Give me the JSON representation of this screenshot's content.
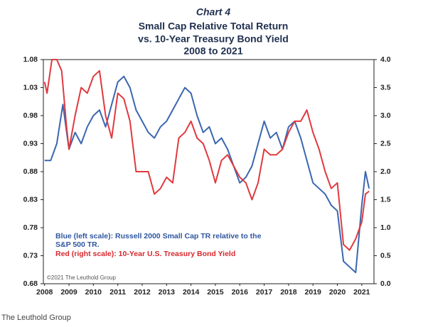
{
  "chart_data": {
    "type": "line",
    "title": "Chart 4",
    "subtitle": [
      "Small Cap Relative Total Return",
      "vs. 10-Year Treasury Bond Yield",
      "2008 to 2021"
    ],
    "annotations": [
      "Blue (left scale):  Russell 2000 Small Cap TR relative to the",
      "S&P 500 TR.",
      "Red (right scale): 10-Year U.S. Treasury Bond Yield",
      "©2021 The Leuthold Group"
    ],
    "source": "The Leuthold Group",
    "xlim": [
      2007.95,
      2021.5
    ],
    "xticks": [
      2008,
      2009,
      2010,
      2011,
      2012,
      2013,
      2014,
      2015,
      2016,
      2017,
      2018,
      2019,
      2020,
      2021
    ],
    "ylim": [
      0.68,
      1.08
    ],
    "yticks": [
      0.68,
      0.73,
      0.78,
      0.83,
      0.88,
      0.93,
      0.98,
      1.03,
      1.08
    ],
    "y2lim": [
      0,
      4
    ],
    "y2ticks": [
      {
        "value": 0,
        "label": "0.0"
      },
      0.5,
      {
        "value": 1,
        "label": "1.0"
      },
      1.5,
      {
        "value": 2,
        "label": "2.0"
      },
      2.5,
      {
        "value": 3,
        "label": "3.0"
      },
      3.5,
      {
        "value": 4,
        "label": "4.0"
      }
    ],
    "series": [
      {
        "color": "#3b66b0",
        "x": [
          2008,
          2008.25,
          2008.5,
          2008.75,
          2009,
          2009.25,
          2009.5,
          2009.75,
          2010,
          2010.25,
          2010.5,
          2010.75,
          2011,
          2011.25,
          2011.5,
          2011.75,
          2012,
          2012.25,
          2012.5,
          2012.75,
          2013,
          2013.25,
          2013.5,
          2013.75,
          2014,
          2014.25,
          2014.5,
          2014.75,
          2015,
          2015.25,
          2015.5,
          2015.75,
          2016,
          2016.25,
          2016.5,
          2016.75,
          2017,
          2017.25,
          2017.5,
          2017.75,
          2018,
          2018.25,
          2018.5,
          2018.75,
          2019,
          2019.25,
          2019.5,
          2019.75,
          2020,
          2020.25,
          2020.5,
          2020.75,
          2021,
          2021.15,
          2021.3
        ],
        "values": [
          0.9,
          0.9,
          0.93,
          1.0,
          0.92,
          0.95,
          0.93,
          0.96,
          0.98,
          0.99,
          0.96,
          1.0,
          1.04,
          1.05,
          1.03,
          0.99,
          0.97,
          0.95,
          0.94,
          0.96,
          0.97,
          0.99,
          1.01,
          1.03,
          1.02,
          0.98,
          0.95,
          0.96,
          0.93,
          0.94,
          0.92,
          0.89,
          0.86,
          0.87,
          0.89,
          0.93,
          0.97,
          0.94,
          0.95,
          0.92,
          0.96,
          0.97,
          0.94,
          0.9,
          0.86,
          0.85,
          0.84,
          0.82,
          0.81,
          0.72,
          0.71,
          0.7,
          0.82,
          0.88,
          0.85
        ]
      },
      {
        "color": "#e0393e",
        "axis": "y2",
        "x": [
          2008,
          2008.1,
          2008.3,
          2008.5,
          2008.7,
          2008.9,
          2009,
          2009.25,
          2009.5,
          2009.75,
          2010,
          2010.25,
          2010.5,
          2010.75,
          2011,
          2011.25,
          2011.5,
          2011.75,
          2012,
          2012.25,
          2012.5,
          2012.75,
          2013,
          2013.25,
          2013.5,
          2013.75,
          2014,
          2014.25,
          2014.5,
          2014.75,
          2015,
          2015.25,
          2015.5,
          2015.75,
          2016,
          2016.25,
          2016.5,
          2016.75,
          2017,
          2017.25,
          2017.5,
          2017.75,
          2018,
          2018.25,
          2018.5,
          2018.75,
          2019,
          2019.25,
          2019.5,
          2019.75,
          2020,
          2020.25,
          2020.5,
          2020.75,
          2021,
          2021.15,
          2021.3
        ],
        "values": [
          3.6,
          3.4,
          4.0,
          4.0,
          3.8,
          2.8,
          2.4,
          3.0,
          3.5,
          3.4,
          3.7,
          3.8,
          3.0,
          2.6,
          3.4,
          3.3,
          2.9,
          2.0,
          2.0,
          2.0,
          1.6,
          1.7,
          1.9,
          1.8,
          2.6,
          2.7,
          2.9,
          2.6,
          2.5,
          2.2,
          1.8,
          2.2,
          2.3,
          2.1,
          1.9,
          1.8,
          1.5,
          1.8,
          2.4,
          2.3,
          2.3,
          2.4,
          2.7,
          2.9,
          2.9,
          3.1,
          2.7,
          2.4,
          2.0,
          1.7,
          1.8,
          0.7,
          0.6,
          0.8,
          1.1,
          1.6,
          1.65
        ]
      }
    ]
  }
}
